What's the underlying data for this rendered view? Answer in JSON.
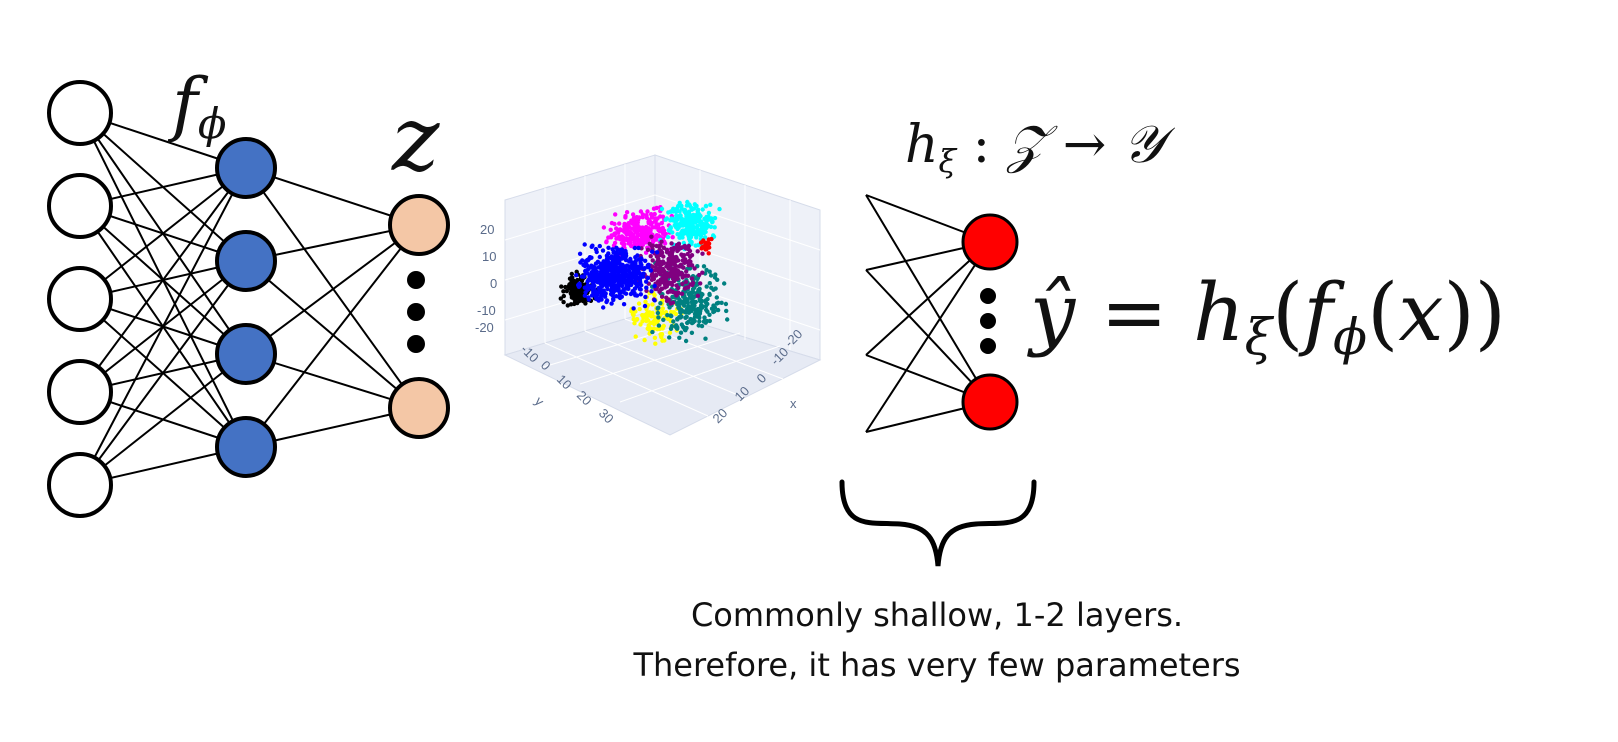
{
  "encoder": {
    "label_f": "f",
    "label_sub": "ϕ",
    "latent_label": "z",
    "input_layer_count": 5,
    "hidden_layer_count": 4,
    "colors": {
      "input": "#ffffff",
      "hidden": "#4472c4",
      "latent": "#f4c7a6"
    }
  },
  "head": {
    "signature": {
      "h": "h",
      "sub": "ξ",
      "colon": " : ",
      "domain": "𝒵",
      "arrow": " → ",
      "codomain": "𝒴"
    },
    "output_color": "#ff0000",
    "equation": {
      "lhs": "ŷ",
      "eq": " = ",
      "h": "h",
      "h_sub": "ξ",
      "open1": "(",
      "f": "f",
      "f_sub": "ϕ",
      "open2": "(",
      "x": "x",
      "close": "))"
    }
  },
  "scatter": {
    "y_ticks": [
      "20",
      "10",
      "0",
      "-10",
      "-20"
    ],
    "x_ticks": [
      "-20",
      "-10",
      "0",
      "10",
      "20"
    ],
    "depth_ticks": [
      "-10",
      "0",
      "10",
      "20",
      "30"
    ],
    "axis_x": "x",
    "axis_y": "y",
    "cluster_colors": [
      "#0000ff",
      "#ff00ff",
      "#00ffff",
      "#800080",
      "#008080",
      "#ffff00",
      "#000000",
      "#ff0000"
    ]
  },
  "brace_caption": {
    "line1": "Commonly shallow, 1-2 layers.",
    "line2": "Therefore, it has very few parameters"
  }
}
